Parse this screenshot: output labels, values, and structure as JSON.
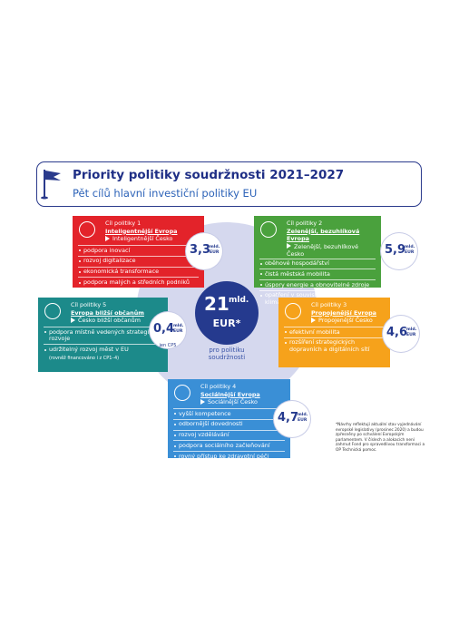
{
  "header": {
    "title": "Priority politiky soudržnosti 2021–2027",
    "subtitle": "Pět cílů hlavní investiční politiky EU"
  },
  "center": {
    "amount": "21",
    "unit": "mld.",
    "currency": "EUR*",
    "caption": "pro politiku soudržnosti"
  },
  "goals": [
    {
      "label": "Cíl politiky 1",
      "eu": "Inteligentnější Evropa",
      "cz": "Inteligentnější Česko",
      "items": [
        "podpora inovací",
        "rozvoj digitalizace",
        "ekonomická transformace",
        "podpora malých a středních podniků"
      ],
      "amount": "3,3",
      "unit": "mld.",
      "currency": "EUR"
    },
    {
      "label": "Cíl politiky 2",
      "eu": "Zelenější, bezuhlíková Evropa",
      "cz": "Zelenější, bezuhlíkové Česko",
      "items": [
        "oběhové hospodářství",
        "čistá městská mobilita",
        "úspory energie a obnovitelné zdroje",
        "opatření v souvislosti se změnou klimatu"
      ],
      "amount": "5,9",
      "unit": "mld.",
      "currency": "EUR"
    },
    {
      "label": "Cíl politiky 3",
      "eu": "Propojenější Evropa",
      "cz": "Propojenější Česko",
      "items": [
        "efektivní mobilita",
        "rozšíření strategických dopravních a digitálních sítí"
      ],
      "amount": "4,6",
      "unit": "mld.",
      "currency": "EUR"
    },
    {
      "label": "Cíl politiky 4",
      "eu": "Sociálnější Evropa",
      "cz": "Sociálnější Česko",
      "items": [
        "vyšší kompetence",
        "odbornější dovednosti",
        "rozvoj vzdělávání",
        "podpora sociálního začleňování",
        "rovný přístup ke zdravotní péči"
      ],
      "amount": "4,7",
      "unit": "mld.",
      "currency": "EUR"
    },
    {
      "label": "Cíl politiky 5",
      "eu": "Evropa bližší občanům",
      "cz": "Česko bližší občanům",
      "items": [
        "podpora místně vedených strategií rozvoje",
        "udržitelný rozvoj měst v EU"
      ],
      "note": "(rovněž financováno i z CP1–4)",
      "amount": "0,4",
      "unit": "mld.",
      "currency": "EUR",
      "amount_note": "jen CP5"
    }
  ],
  "footnote": "*Návrhy reflektují aktuální stav vyjednávání evropské legislativy (prosinec 2020) a budou zpřesněny po schválení Evropským parlamentem. V číslech a alokacích není zahrnut Fond pro spravedlivou transformaci a OP Technická pomoc."
}
